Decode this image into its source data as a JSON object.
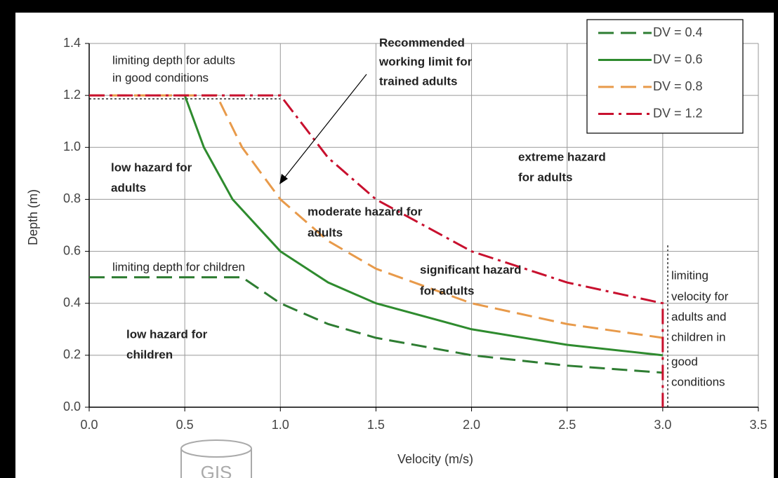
{
  "chart_data": {
    "type": "line",
    "xlabel": "Velocity (m/s)",
    "ylabel": "Depth (m)",
    "xlim": [
      0,
      3.5
    ],
    "ylim": [
      0,
      1.4
    ],
    "xticks": [
      {
        "value": 0,
        "label": "0.0"
      },
      {
        "value": 0.5,
        "label": "0.5"
      },
      {
        "value": 1,
        "label": "1.0"
      },
      {
        "value": 1.5,
        "label": "1.5"
      },
      {
        "value": 2,
        "label": "2.0"
      },
      {
        "value": 2.5,
        "label": "2.5"
      },
      {
        "value": 3,
        "label": "3.0"
      },
      {
        "value": 3.5,
        "label": "3.5"
      }
    ],
    "yticks": [
      {
        "value": 0,
        "label": "0.0"
      },
      {
        "value": 0.2,
        "label": "0.2"
      },
      {
        "value": 0.4,
        "label": "0.4"
      },
      {
        "value": 0.6,
        "label": "0.6"
      },
      {
        "value": 0.8,
        "label": "0.8"
      },
      {
        "value": 1,
        "label": "1.0"
      },
      {
        "value": 1.2,
        "label": "1.2"
      },
      {
        "value": 1.4,
        "label": "1.4"
      }
    ],
    "grid": true,
    "legend": "upper right",
    "series": [
      {
        "name": "DV = 0.4",
        "color": "#2e7d32",
        "style": "dashed",
        "x": [
          0,
          0.8,
          1,
          1.25,
          1.5,
          2,
          2.5,
          3
        ],
        "values": [
          0.5,
          0.5,
          0.4,
          0.32,
          0.267,
          0.2,
          0.16,
          0.133
        ]
      },
      {
        "name": "DV = 0.6",
        "color": "#2e8b2e",
        "style": "solid",
        "x": [
          0.5,
          0.6,
          0.75,
          1,
          1.25,
          1.5,
          2,
          2.5,
          3
        ],
        "values": [
          1.2,
          1.0,
          0.8,
          0.6,
          0.48,
          0.4,
          0.3,
          0.24,
          0.2
        ]
      },
      {
        "name": "DV = 0.8",
        "color": "#e89a4a",
        "style": "dashed",
        "x": [
          0,
          0.667,
          0.8,
          1,
          1.25,
          1.5,
          2,
          2.5,
          3
        ],
        "values": [
          1.2,
          1.2,
          1.0,
          0.8,
          0.64,
          0.533,
          0.4,
          0.32,
          0.267
        ]
      },
      {
        "name": "DV = 1.2",
        "color": "#c8102e",
        "style": "dashdot",
        "x": [
          0,
          1,
          1.25,
          1.5,
          2,
          2.5,
          3,
          3
        ],
        "values": [
          1.2,
          1.2,
          0.96,
          0.8,
          0.6,
          0.48,
          0.4,
          0
        ]
      }
    ],
    "annotations": [
      "limiting depth for adults",
      "in good conditions",
      "Recommended",
      "working limit for",
      "trained adults",
      "low hazard for",
      "adults",
      "extreme hazard",
      "for adults",
      "moderate hazard for",
      "adults",
      "limiting depth for children",
      "significant hazard",
      "for adults",
      "limiting",
      "velocity for",
      "adults and",
      "children in",
      "good",
      "conditions",
      "low hazard for",
      "children"
    ],
    "watermark": "GIS"
  }
}
